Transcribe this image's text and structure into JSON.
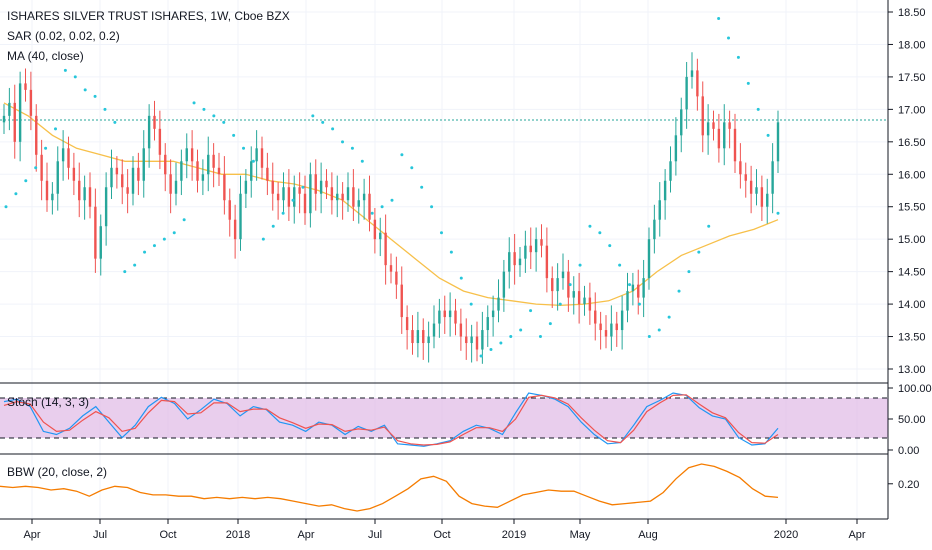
{
  "legend": {
    "title": "ISHARES SILVER TRUST ISHARES, 1W, Cboe BZX",
    "sar": "SAR (0.02, 0.02, 0.2)",
    "ma": "MA (40, close)",
    "stoch": "Stoch (14, 3, 3)",
    "bbw": "BBW (20, close, 2)"
  },
  "colors": {
    "up": "#26a69a",
    "down": "#ef5350",
    "sar": "#26c6da",
    "ma": "#f7c04a",
    "stoch_k": "#2196f3",
    "stoch_d": "#ef5350",
    "stoch_band": "#e1bee7",
    "bbw": "#f57c00",
    "last_price_line": "#26a69a"
  },
  "chart_data": [
    {
      "type": "candlestick",
      "name": "price",
      "ylim": [
        12.85,
        18.6
      ],
      "yticks": [
        "18.50",
        "18.00",
        "17.50",
        "17.00",
        "16.50",
        "16.00",
        "15.50",
        "15.00",
        "14.50",
        "14.00",
        "13.50",
        "13.00"
      ],
      "x_tick_labels": [
        "Apr",
        "Jul",
        "Oct",
        "2018",
        "Apr",
        "Jul",
        "Oct",
        "2019",
        "May",
        "Aug",
        "2020",
        "Apr"
      ],
      "last_close": 16.8,
      "weekly_close": [
        16.9,
        17.1,
        16.5,
        17.4,
        17.3,
        16.9,
        16.3,
        15.9,
        15.6,
        15.7,
        16.2,
        16.4,
        16.1,
        15.9,
        15.6,
        15.8,
        15.5,
        14.7,
        15.2,
        15.8,
        16.1,
        16.0,
        15.8,
        15.7,
        16.1,
        15.9,
        16.4,
        16.9,
        16.7,
        16.3,
        16.0,
        15.7,
        15.9,
        16.2,
        16.4,
        16.2,
        15.9,
        16.0,
        16.3,
        16.1,
        16.0,
        15.6,
        15.3,
        15.0,
        15.7,
        15.9,
        16.2,
        16.4,
        16.1,
        15.9,
        15.7,
        15.6,
        15.8,
        15.5,
        15.8,
        15.7,
        15.4,
        16.0,
        15.7,
        15.9,
        15.8,
        15.6,
        15.7,
        15.6,
        15.8,
        15.5,
        15.6,
        15.7,
        15.3,
        15.0,
        15.1,
        14.6,
        14.5,
        14.3,
        13.8,
        13.6,
        13.4,
        13.6,
        13.4,
        13.5,
        13.7,
        13.9,
        13.8,
        13.9,
        13.7,
        13.5,
        13.4,
        13.5,
        13.3,
        13.6,
        13.8,
        13.9,
        14.1,
        14.5,
        14.8,
        14.6,
        14.7,
        14.9,
        14.8,
        15.0,
        14.9,
        14.4,
        14.2,
        14.4,
        14.5,
        14.1,
        14.2,
        14.0,
        14.1,
        13.9,
        13.7,
        13.6,
        13.5,
        13.7,
        13.6,
        13.9,
        14.2,
        14.3,
        14.1,
        14.4,
        15.0,
        15.3,
        15.6,
        15.9,
        16.2,
        16.6,
        17.0,
        17.5,
        17.6,
        17.2,
        16.6,
        16.8,
        16.7,
        16.4,
        16.8,
        16.7,
        16.2,
        16.0,
        15.9,
        15.7,
        15.8,
        15.5,
        15.7,
        16.2,
        16.8
      ],
      "sar_dots": [
        15.5,
        15.7,
        15.9,
        16.1,
        16.4,
        16.7,
        17.6,
        17.5,
        17.3,
        17.2,
        17.0,
        16.8,
        14.5,
        14.6,
        14.8,
        14.9,
        15.0,
        15.1,
        15.3,
        17.1,
        17.0,
        16.9,
        16.8,
        16.6,
        16.4,
        16.2,
        15.0,
        15.2,
        15.4,
        15.6,
        15.8,
        16.9,
        16.8,
        16.7,
        16.5,
        16.4,
        16.2,
        15.4,
        15.5,
        15.6,
        16.3,
        16.1,
        15.8,
        15.5,
        15.1,
        14.8,
        14.4,
        14.0,
        13.2,
        13.3,
        13.4,
        13.5,
        13.6,
        13.9,
        13.5,
        13.7,
        14.0,
        14.3,
        14.6,
        15.2,
        15.1,
        14.9,
        14.6,
        14.3,
        14.0,
        13.5,
        13.6,
        13.8,
        14.2,
        14.5,
        14.8,
        15.2,
        18.4,
        18.1,
        17.8,
        17.4,
        17.0,
        16.6,
        15.4
      ],
      "ma_40": [
        17.1,
        16.9,
        16.6,
        16.4,
        16.3,
        16.2,
        16.2,
        16.2,
        16.1,
        16.0,
        16.0,
        15.9,
        15.85,
        15.75,
        15.6,
        15.3,
        15.0,
        14.7,
        14.4,
        14.2,
        14.1,
        14.05,
        14.0,
        13.98,
        14.0,
        14.05,
        14.2,
        14.5,
        14.75,
        14.9,
        15.05,
        15.15,
        15.3
      ]
    },
    {
      "type": "line",
      "name": "stochastic",
      "ylim": [
        0,
        100
      ],
      "yticks": [
        "100.00",
        "50.00",
        "0.00"
      ],
      "band": [
        20,
        80
      ],
      "series": [
        {
          "values": [
            78,
            82,
            70,
            30,
            25,
            35,
            55,
            70,
            45,
            20,
            40,
            70,
            85,
            75,
            50,
            65,
            82,
            75,
            55,
            70,
            65,
            45,
            40,
            30,
            45,
            40,
            25,
            38,
            30,
            40,
            10,
            8,
            6,
            10,
            15,
            30,
            40,
            35,
            25,
            60,
            92,
            88,
            82,
            70,
            45,
            25,
            10,
            12,
            40,
            70,
            80,
            92,
            88,
            68,
            55,
            50,
            20,
            8,
            10,
            35
          ]
        },
        {
          "values": [
            72,
            78,
            74,
            45,
            30,
            32,
            48,
            62,
            52,
            30,
            35,
            60,
            80,
            78,
            58,
            60,
            76,
            76,
            62,
            66,
            66,
            52,
            44,
            35,
            42,
            41,
            30,
            34,
            32,
            37,
            15,
            10,
            8,
            9,
            13,
            25,
            36,
            36,
            30,
            50,
            85,
            88,
            84,
            74,
            52,
            32,
            15,
            12,
            32,
            62,
            76,
            88,
            89,
            74,
            60,
            52,
            28,
            12,
            11,
            25
          ]
        }
      ]
    },
    {
      "type": "line",
      "name": "bbw",
      "ylim": [
        0.07,
        0.3
      ],
      "yticks": [
        "0.20"
      ],
      "series": [
        {
          "values": [
            0.19,
            0.185,
            0.19,
            0.185,
            0.175,
            0.18,
            0.17,
            0.15,
            0.175,
            0.19,
            0.185,
            0.165,
            0.155,
            0.155,
            0.15,
            0.15,
            0.14,
            0.145,
            0.14,
            0.145,
            0.14,
            0.145,
            0.14,
            0.13,
            0.12,
            0.11,
            0.115,
            0.1,
            0.09,
            0.1,
            0.12,
            0.15,
            0.18,
            0.22,
            0.23,
            0.21,
            0.15,
            0.12,
            0.11,
            0.105,
            0.13,
            0.155,
            0.165,
            0.175,
            0.17,
            0.17,
            0.15,
            0.13,
            0.115,
            0.12,
            0.125,
            0.13,
            0.165,
            0.22,
            0.265,
            0.28,
            0.27,
            0.25,
            0.225,
            0.18,
            0.15,
            0.145
          ]
        }
      ]
    }
  ]
}
